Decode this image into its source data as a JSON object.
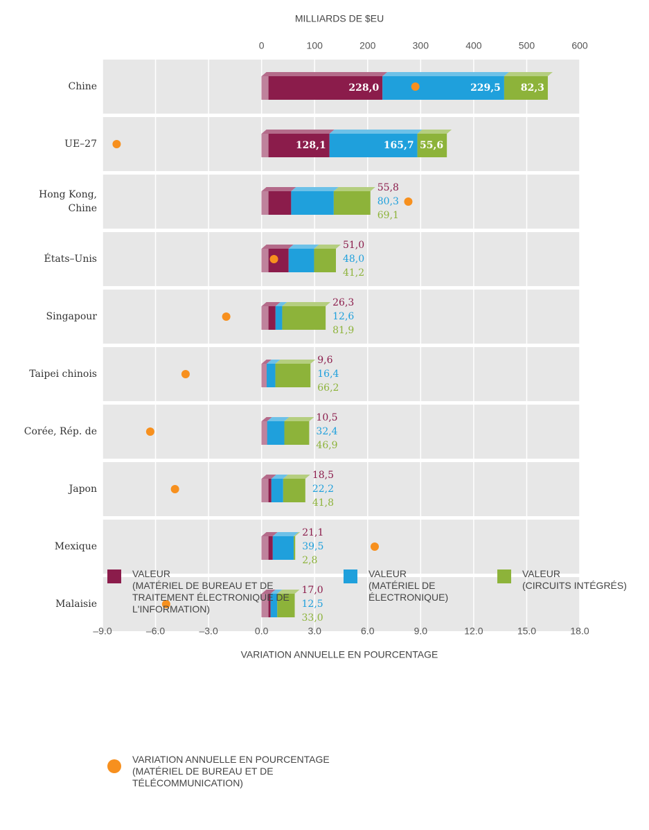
{
  "chart_data": {
    "type": "bar",
    "orientation": "horizontal",
    "stacked": true,
    "xlabel": "MILLIARDS DE $EU",
    "x2label": "VARIATION ANNUELLE EN POURCENTAGE",
    "categories": [
      "Chine",
      "UE–27",
      "Hong Kong,\nChine",
      "États–Unis",
      "Singapour",
      "Taipei chinois",
      "Corée, Rép. de",
      "Japon",
      "Mexique",
      "Malaisie"
    ],
    "xlim": [
      -300,
      600
    ],
    "xticks": [
      0,
      100,
      200,
      300,
      400,
      500,
      600
    ],
    "x2lim": [
      -9,
      18
    ],
    "x2ticks": [
      {
        "value": -9,
        "label": "–9.0"
      },
      {
        "value": -6,
        "label": "–6.0"
      },
      {
        "value": -3,
        "label": "–3.0"
      },
      {
        "value": 0,
        "label": "0.0"
      },
      {
        "value": 3,
        "label": "3.0"
      },
      {
        "value": 6,
        "label": "6.0"
      },
      {
        "value": 9,
        "label": "9.0"
      },
      {
        "value": 12,
        "label": "12.0"
      },
      {
        "value": 15,
        "label": "15.0"
      },
      {
        "value": 18,
        "label": "18.0"
      }
    ],
    "grid": true,
    "series": [
      {
        "name": "VALEUR\n(MATÉRIEL DE BUREAU ET DE TRAITEMENT ÉLECTRONIQUE DE L'INFORMATION)",
        "color": "#8b1c4b",
        "values": [
          228.0,
          128.1,
          55.8,
          51.0,
          26.3,
          9.6,
          10.5,
          18.5,
          21.1,
          17.0
        ],
        "value_labels": [
          "228,0",
          "128,1",
          "55,8",
          "51,0",
          "26,3",
          "9,6",
          "10,5",
          "18,5",
          "21,1",
          "17,0"
        ]
      },
      {
        "name": "VALEUR\n(MATÉRIEL DE ÉLECTRONIQUE)",
        "color": "#1fa0dc",
        "values": [
          229.5,
          165.7,
          80.3,
          48.0,
          12.6,
          16.4,
          32.4,
          22.2,
          39.5,
          12.5
        ],
        "value_labels": [
          "229,5",
          "165,7",
          "80,3",
          "48,0",
          "12,6",
          "16,4",
          "32,4",
          "22,2",
          "39,5",
          "12,5"
        ]
      },
      {
        "name": "VALEUR\n(CIRCUITS INTÉGRÉS)",
        "color": "#8db33a",
        "values": [
          82.3,
          55.6,
          69.1,
          41.2,
          81.9,
          66.2,
          46.9,
          41.8,
          2.8,
          33.0
        ],
        "value_labels": [
          "82,3",
          "55,6",
          "69,1",
          "41,2",
          "81,9",
          "66,2",
          "46,9",
          "41,8",
          "2,8",
          "33,0"
        ]
      },
      {
        "name": "VARIATION ANNUELLE EN POURCENTAGE\n(MATÉRIEL DE BUREAU ET DE TÉLÉCOMMUNICATION)",
        "color": "#f7901e",
        "axis": "x2",
        "mark": "dot",
        "values": [
          8.7,
          -8.2,
          8.3,
          0.7,
          -2.0,
          -4.3,
          -6.3,
          -4.9,
          6.4,
          -5.4
        ]
      }
    ]
  }
}
